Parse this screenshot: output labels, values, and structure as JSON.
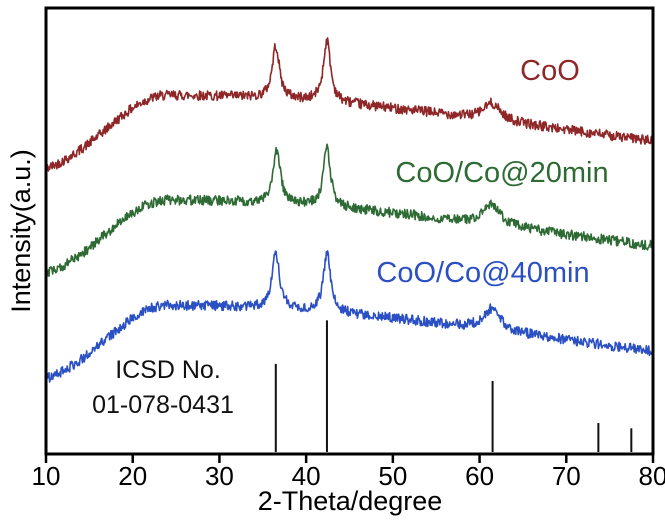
{
  "chart_data": {
    "type": "line",
    "title": "",
    "xlabel": "2-Theta/degree",
    "ylabel": "Intensity(a.u.)",
    "xlim": [
      10,
      80
    ],
    "x_ticks": [
      10,
      20,
      30,
      40,
      50,
      60,
      70,
      80
    ],
    "grid": false,
    "legend_position": "inline-labels",
    "series": [
      {
        "name": "CoO",
        "label": "CoO",
        "color": "#8f2728",
        "baseline_offset": 0.614,
        "broad_hump": {
          "center": 24,
          "sigma_left": 7,
          "sigma_right": 45,
          "amplitude": 0.19
        },
        "peaks": [
          {
            "two_theta": 36.5,
            "height": 0.118,
            "width": 0.5
          },
          {
            "two_theta": 42.4,
            "height": 0.138,
            "width": 0.5
          },
          {
            "two_theta": 61.4,
            "height": 0.038,
            "width": 1.2
          }
        ],
        "noise": 0.011
      },
      {
        "name": "CoO/Co@20min",
        "label": "CoO/Co@20min",
        "color": "#2e6b34",
        "baseline_offset": 0.379,
        "broad_hump": {
          "center": 24,
          "sigma_left": 7,
          "sigma_right": 45,
          "amplitude": 0.19
        },
        "peaks": [
          {
            "two_theta": 36.6,
            "height": 0.12,
            "width": 0.5
          },
          {
            "two_theta": 42.4,
            "height": 0.132,
            "width": 0.5
          },
          {
            "two_theta": 61.4,
            "height": 0.045,
            "width": 1.2
          }
        ],
        "noise": 0.011
      },
      {
        "name": "CoO/Co@40min",
        "label": "CoO/Co@40min",
        "color": "#2b50c4",
        "baseline_offset": 0.143,
        "broad_hump": {
          "center": 24,
          "sigma_left": 7,
          "sigma_right": 45,
          "amplitude": 0.19
        },
        "peaks": [
          {
            "two_theta": 36.5,
            "height": 0.125,
            "width": 0.5
          },
          {
            "two_theta": 42.4,
            "height": 0.13,
            "width": 0.5
          },
          {
            "two_theta": 61.4,
            "height": 0.048,
            "width": 1.2
          }
        ],
        "noise": 0.011
      }
    ],
    "reference_pattern": {
      "label_line1": "ICSD No.",
      "label_line2": "01-078-0431",
      "max_bar_height_fraction": 0.295,
      "peaks": [
        {
          "two_theta": 36.5,
          "relative_intensity": 0.67
        },
        {
          "two_theta": 42.4,
          "relative_intensity": 1.0
        },
        {
          "two_theta": 61.5,
          "relative_intensity": 0.54
        },
        {
          "two_theta": 73.7,
          "relative_intensity": 0.22
        },
        {
          "two_theta": 77.5,
          "relative_intensity": 0.18
        }
      ]
    }
  }
}
